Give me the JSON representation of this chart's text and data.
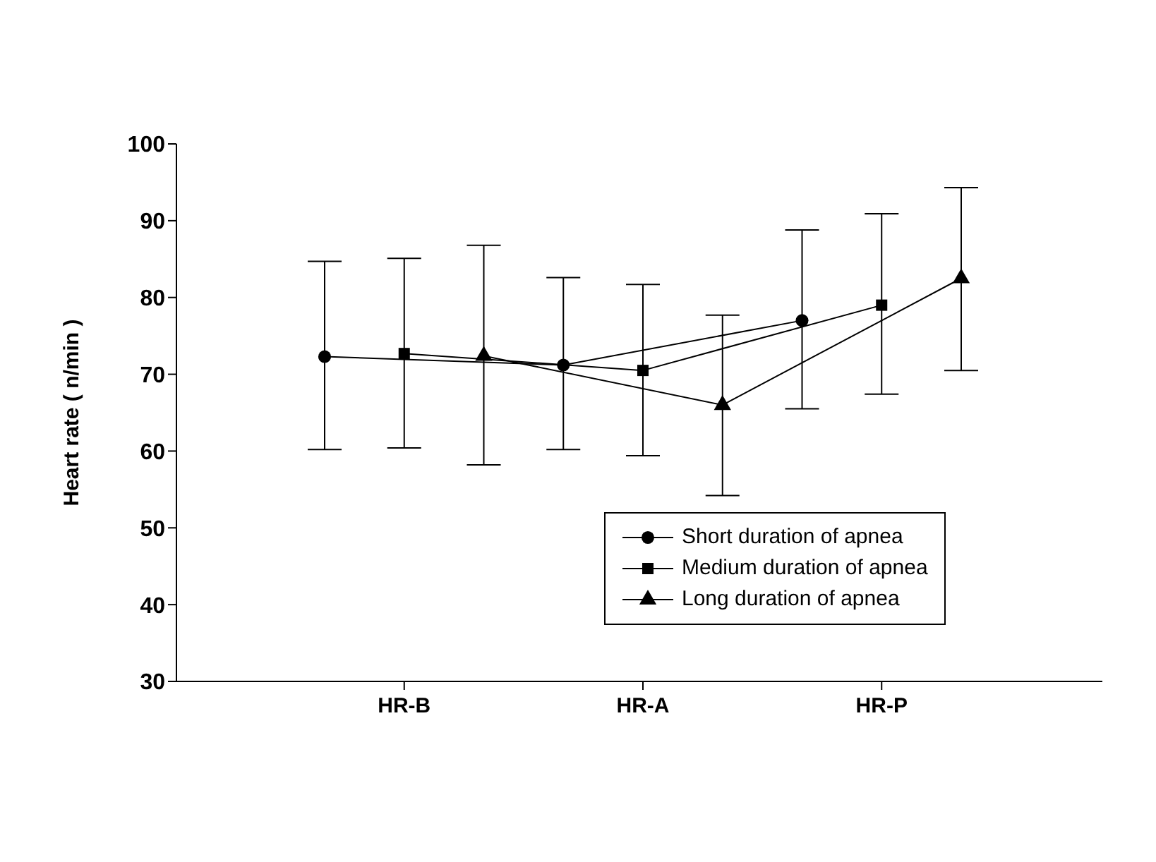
{
  "chart_data": {
    "type": "line",
    "ylabel": "Heart rate ( n/min )",
    "categories": [
      null,
      "HR-B",
      null,
      null,
      "HR-A",
      null,
      null,
      "HR-P",
      null
    ],
    "series": [
      {
        "name": "Short duration of apnea",
        "color": "#000000",
        "marker": "circle",
        "values": [
          72.3,
          null,
          null,
          71.2,
          null,
          null,
          77,
          null,
          null
        ],
        "errors": [
          [
            60.2,
            84.7
          ],
          null,
          null,
          [
            60.2,
            82.6
          ],
          null,
          null,
          [
            65.5,
            88.8
          ],
          null,
          null
        ]
      },
      {
        "name": "Medium duration of apnea",
        "color": "#000000",
        "marker": "square",
        "values": [
          null,
          72.7,
          null,
          null,
          70.5,
          null,
          null,
          79,
          null
        ],
        "errors": [
          null,
          [
            60.4,
            85.1
          ],
          null,
          null,
          [
            59.4,
            81.7
          ],
          null,
          null,
          [
            67.4,
            90.9
          ],
          null
        ]
      },
      {
        "name": "Long duration of apnea",
        "color": "#000000",
        "marker": "triangle",
        "values": [
          null,
          null,
          72.4,
          null,
          null,
          66,
          null,
          null,
          82.5
        ],
        "errors": [
          null,
          null,
          [
            58.2,
            86.8
          ],
          null,
          null,
          [
            54.2,
            77.7
          ],
          null,
          null,
          [
            70.5,
            94.3
          ]
        ]
      }
    ],
    "ylim": [
      30,
      100
    ],
    "yticks": [
      30,
      40,
      50,
      60,
      70,
      80,
      90,
      100
    ],
    "grid": false,
    "legend": "bottom right"
  }
}
